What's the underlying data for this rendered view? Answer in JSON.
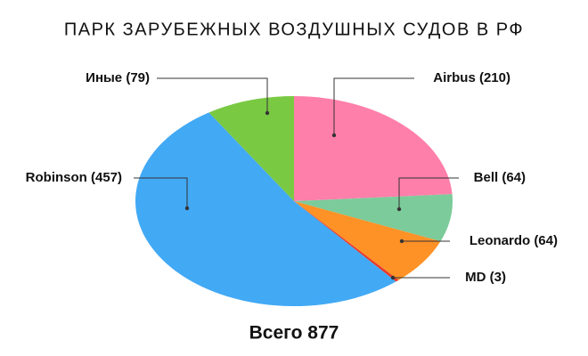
{
  "chart_data": {
    "type": "pie",
    "title": "ПАРК ЗАРУБЕЖНЫХ ВОЗДУШНЫХ СУДОВ В РФ",
    "categories": [
      "Airbus",
      "Bell",
      "Leonardo",
      "MD",
      "Robinson",
      "Иные"
    ],
    "values": [
      210,
      64,
      64,
      3,
      457,
      79
    ],
    "value_labels": [
      "Airbus (210)",
      "Bell (64)",
      "Leonardo (64)",
      "MD (3)",
      "Robinson (457)",
      "Иные (79)"
    ],
    "colors": [
      "#ff7fab",
      "#7ccb9a",
      "#ff9226",
      "#e8392c",
      "#42a9f5",
      "#7ac943"
    ],
    "footer": "Всего 877"
  }
}
